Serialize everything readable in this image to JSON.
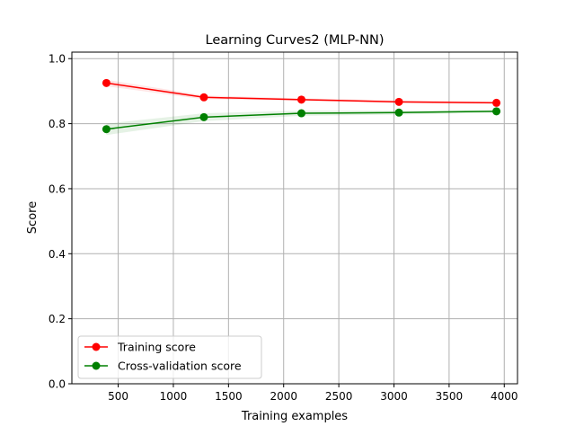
{
  "chart_data": {
    "type": "line",
    "title": "Learning Curves2 (MLP-NN)",
    "xlabel": "Training examples",
    "ylabel": "Score",
    "xlim": [
      80,
      4120
    ],
    "ylim": [
      0,
      1.02
    ],
    "xticks": [
      500,
      1000,
      1500,
      2000,
      2500,
      3000,
      3500,
      4000
    ],
    "xtick_labels": [
      "500",
      "1000",
      "1500",
      "2000",
      "2500",
      "3000",
      "3500",
      "4000"
    ],
    "yticks": [
      0.0,
      0.2,
      0.4,
      0.6,
      0.8,
      1.0
    ],
    "ytick_labels": [
      "0.0",
      "0.2",
      "0.4",
      "0.6",
      "0.8",
      "1.0"
    ],
    "grid": true,
    "legend_position": "lower-left",
    "x": [
      393,
      1277,
      2161,
      3045,
      3929
    ],
    "series": [
      {
        "name": "Training score",
        "color": "#ff0000",
        "marker": "circle",
        "values": [
          0.925,
          0.881,
          0.874,
          0.867,
          0.864
        ],
        "band_lower": [
          0.915,
          0.875,
          0.87,
          0.863,
          0.861
        ],
        "band_upper": [
          0.935,
          0.887,
          0.878,
          0.871,
          0.867
        ]
      },
      {
        "name": "Cross-validation score",
        "color": "#008000",
        "marker": "circle",
        "values": [
          0.783,
          0.82,
          0.832,
          0.834,
          0.838
        ],
        "band_lower": [
          0.765,
          0.808,
          0.824,
          0.828,
          0.834
        ],
        "band_upper": [
          0.8,
          0.832,
          0.84,
          0.84,
          0.842
        ]
      }
    ]
  }
}
